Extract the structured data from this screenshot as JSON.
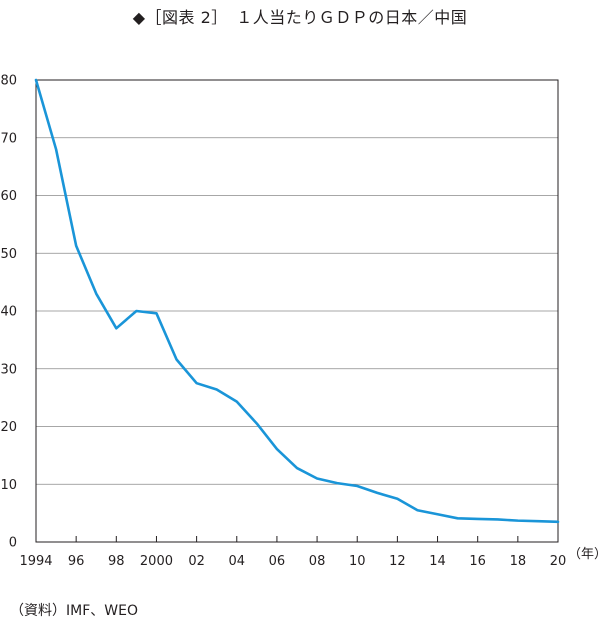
{
  "chart_data": {
    "type": "line",
    "title": "◆［図表 2］　１人当たりＧＤＰの日本／中国",
    "xlabel": "",
    "x_unit_label": "（年）",
    "ylabel": "",
    "xlim": [
      1994,
      2020
    ],
    "ylim": [
      0,
      80
    ],
    "grid": true,
    "legend": "none",
    "x_ticks": [
      1994,
      1996,
      1998,
      2000,
      2002,
      2004,
      2006,
      2008,
      2010,
      2012,
      2014,
      2016,
      2018,
      2020
    ],
    "x_tick_labels": [
      "1994",
      "96",
      "98",
      "2000",
      "02",
      "04",
      "06",
      "08",
      "10",
      "12",
      "14",
      "16",
      "18",
      "20"
    ],
    "y_ticks": [
      0,
      10,
      20,
      30,
      40,
      50,
      60,
      70,
      80
    ],
    "y_tick_labels": [
      "0",
      "10",
      "20",
      "30",
      "40",
      "50",
      "60",
      "70",
      "80"
    ],
    "series": [
      {
        "color": "#1a95d8",
        "x": [
          1994,
          1995,
          1996,
          1997,
          1998,
          1999,
          2000,
          2001,
          2002,
          2003,
          2004,
          2005,
          2006,
          2007,
          2008,
          2009,
          2010,
          2011,
          2012,
          2013,
          2014,
          2015,
          2016,
          2017,
          2018,
          2019,
          2020
        ],
        "values": [
          80.0,
          68.0,
          51.3,
          43.0,
          37.0,
          40.0,
          39.6,
          31.6,
          27.5,
          26.4,
          24.3,
          20.5,
          16.1,
          12.8,
          11.0,
          10.2,
          9.7,
          8.5,
          7.5,
          5.5,
          4.8,
          4.1,
          4.0,
          3.9,
          3.7,
          3.6,
          3.5
        ]
      }
    ]
  },
  "source": "（資料）IMF、WEO"
}
